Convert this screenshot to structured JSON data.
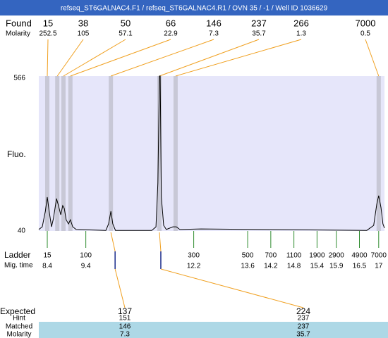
{
  "chart_data": {
    "type": "line",
    "title": "refseq_ST6GALNAC4.F1 / refseq_ST6GALNAC4.R1 / OVN 35 / -1 / Well ID 1036629",
    "y_label": "Fluo.",
    "xlim": [
      8.18,
      17.15
    ],
    "ylim": [
      40,
      566
    ],
    "yticks": [
      566,
      40
    ],
    "x": [
      8.18,
      8.27,
      8.35,
      8.4,
      8.45,
      8.51,
      8.56,
      8.64,
      8.69,
      8.75,
      8.8,
      8.84,
      8.89,
      8.95,
      9.0,
      9.06,
      9.15,
      9.92,
      9.99,
      10.05,
      10.1,
      10.17,
      11.11,
      11.22,
      11.27,
      11.31,
      11.33,
      11.36,
      11.42,
      11.49,
      11.66,
      11.75,
      11.84,
      12.39,
      16.69,
      16.87,
      16.95,
      17.0,
      17.06,
      17.11,
      17.15
    ],
    "series": [
      {
        "color": "#000000",
        "values": [
          45,
          54,
          107,
          155,
          107,
          54,
          83,
          150,
          126,
          95,
          126,
          117,
          78,
          64,
          78,
          54,
          45,
          42,
          64,
          107,
          64,
          42,
          42,
          54,
          203,
          566,
          566,
          155,
          59,
          45,
          54,
          54,
          45,
          47,
          42,
          59,
          131,
          160,
          119,
          64,
          50
        ]
      }
    ],
    "found": {
      "label": "Found",
      "molarity_label": "Molarity",
      "sizes": [
        15,
        38,
        50,
        66,
        146,
        237,
        266,
        7000
      ],
      "molarity": [
        252.5,
        105,
        57.1,
        22.9,
        7.3,
        35.7,
        1.3,
        0.5
      ],
      "mig_time": [
        8.4,
        8.66,
        8.82,
        9.0,
        10.05,
        11.31,
        11.73,
        17.0
      ]
    },
    "ladder": {
      "label": "Ladder",
      "mig_label": "Mig. time",
      "sizes": [
        15,
        100,
        300,
        500,
        700,
        1100,
        1900,
        2900,
        4900,
        7000
      ],
      "mig_time": [
        8.4,
        9.4,
        12.2,
        13.6,
        14.2,
        14.8,
        15.4,
        15.9,
        16.5,
        17
      ]
    },
    "expected": {
      "label": "Expected",
      "hint_label": "Hint",
      "matched_label": "Matched",
      "molarity_label": "Molarity",
      "sizes": [
        137,
        224
      ],
      "hint": [
        151,
        237
      ],
      "matched": [
        146,
        237
      ],
      "molarity": [
        7.3,
        35.7
      ],
      "mig_time": [
        10.05,
        11.31
      ]
    }
  }
}
